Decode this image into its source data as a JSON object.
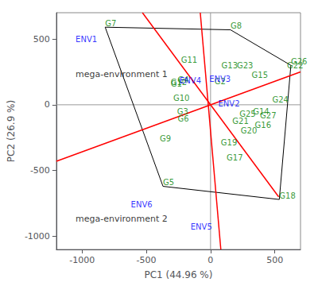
{
  "chart_data": {
    "type": "biplot",
    "xlabel": "PC1 (44.96 %)",
    "ylabel": "PC2 (26.9 %)",
    "xlim": [
      -1200,
      700
    ],
    "ylim": [
      -1100,
      700
    ],
    "xticks": [
      -1000,
      -500,
      0,
      500
    ],
    "yticks": [
      -1000,
      -500,
      0,
      500
    ],
    "grid": false,
    "series": [
      {
        "type": "line",
        "color": "#999999",
        "x": [
          -1200,
          700
        ],
        "y": [
          0,
          0
        ]
      },
      {
        "type": "line",
        "color": "#999999",
        "x": [
          0,
          0
        ],
        "y": [
          -1100,
          700
        ]
      },
      {
        "type": "line",
        "color": "#000000",
        "x": [
          -820,
          155,
          625,
          535,
          -370,
          -820
        ],
        "y": [
          590,
          570,
          300,
          -720,
          -620,
          590
        ]
      },
      {
        "type": "line",
        "color": "#FF0000",
        "x": [
          -1200,
          700
        ],
        "y": [
          -430,
          250
        ]
      },
      {
        "type": "line",
        "color": "#FF0000",
        "x": [
          -530,
          530
        ],
        "y": [
          700,
          -700
        ]
      },
      {
        "type": "line",
        "color": "#FF0000",
        "x": [
          -80,
          80
        ],
        "y": [
          700,
          -1100
        ]
      },
      {
        "type": "text",
        "color": "#008000",
        "labels": [
          "G2",
          "G3",
          "G5",
          "G6",
          "G7",
          "G8",
          "G9",
          "G10",
          "G11",
          "G12",
          "G13",
          "G14",
          "G15",
          "G16",
          "G17",
          "G18",
          "G19",
          "G20",
          "G21",
          "G22",
          "G23",
          "G24",
          "G25",
          "G26",
          "G27",
          "G4",
          "G1"
        ],
        "x": [
          30,
          -260,
          -370,
          -255,
          -820,
          155,
          -395,
          -290,
          -230,
          -310,
          85,
          330,
          320,
          345,
          125,
          535,
          80,
          235,
          170,
          595,
          205,
          480,
          225,
          625,
          385,
          -255,
          -310
        ],
        "y": [
          150,
          -80,
          -620,
          -135,
          590,
          570,
          -285,
          20,
          310,
          140,
          270,
          -80,
          195,
          -185,
          -430,
          -720,
          -315,
          -230,
          -155,
          270,
          270,
          10,
          -100,
          300,
          -115,
          160,
          130
        ]
      },
      {
        "type": "text",
        "color": "#0000FF",
        "labels": [
          "ENV1",
          "ENV2",
          "ENV3",
          "ENV4",
          "ENV5",
          "ENV6"
        ],
        "x": [
          -1050,
          60,
          -10,
          -240,
          -155,
          -620
        ],
        "y": [
          470,
          -20,
          165,
          155,
          -960,
          -790
        ]
      }
    ],
    "annotations": [
      {
        "text": "mega-environment 1",
        "x": -1050,
        "y": 200,
        "color": "#000000"
      },
      {
        "text": "mega-environment 2",
        "x": -1050,
        "y": -900,
        "color": "#000000"
      }
    ]
  }
}
